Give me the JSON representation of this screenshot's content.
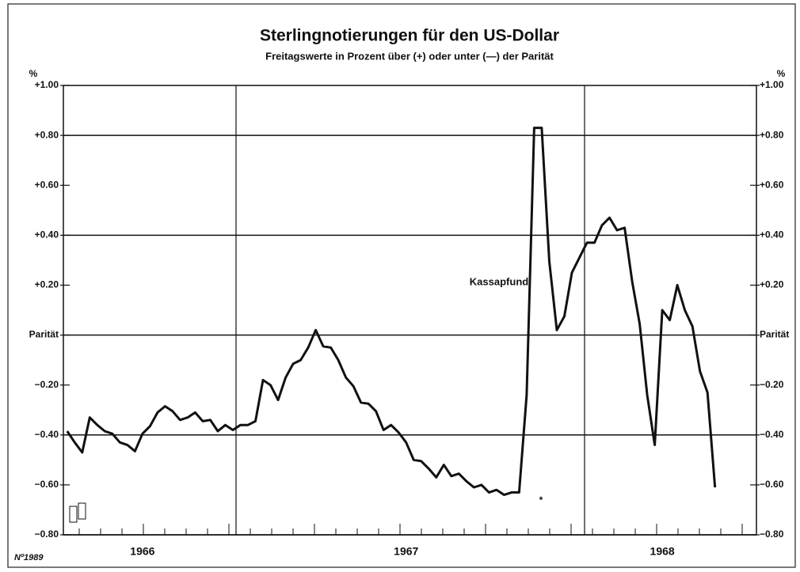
{
  "chart_data": {
    "type": "line",
    "title": "Sterlingnotierungen für den US-Dollar",
    "subtitle": "Freitagswerte in Prozent über (+) oder unter (—) der Parität",
    "y_unit": "%",
    "annotations": {
      "series_label": "Kassapfund",
      "marker": "*",
      "number": "Nº1989"
    },
    "color": "#111111",
    "grid": true,
    "ylim": [
      -0.8,
      1.0
    ],
    "yticks": [
      {
        "value": 1.0,
        "label": "+1.00"
      },
      {
        "value": 0.8,
        "label": "+0.80"
      },
      {
        "value": 0.6,
        "label": "+0.60"
      },
      {
        "value": 0.4,
        "label": "+0.40"
      },
      {
        "value": 0.2,
        "label": "+0.20"
      },
      {
        "value": 0,
        "label": "Parität"
      },
      {
        "value": -0.2,
        "label": "−0.20"
      },
      {
        "value": -0.4,
        "label": "−0.40"
      },
      {
        "value": -0.6,
        "label": "−0.60"
      },
      {
        "value": -0.8,
        "label": "−0.80"
      }
    ],
    "categories": [
      null,
      null,
      null,
      null,
      null,
      null,
      null,
      null,
      null,
      null,
      "1966",
      null,
      null,
      null,
      null,
      null,
      null,
      null,
      null,
      null,
      null,
      null,
      null,
      null,
      null,
      null,
      null,
      null,
      null,
      null,
      null,
      null,
      null,
      null,
      null,
      null,
      null,
      null,
      null,
      null,
      null,
      null,
      null,
      null,
      null,
      "1967",
      null,
      null,
      null,
      null,
      null,
      null,
      null,
      null,
      null,
      null,
      null,
      null,
      null,
      null,
      null,
      null,
      null,
      null,
      null,
      null,
      null,
      null,
      null,
      null,
      null,
      null,
      null,
      null,
      null,
      null,
      null,
      null,
      null,
      "1968",
      null,
      null,
      null,
      null,
      null,
      null,
      null,
      null,
      null,
      null,
      null,
      null
    ],
    "values": [
      -0.385,
      -0.43,
      -0.47,
      -0.33,
      -0.36,
      -0.385,
      -0.395,
      -0.43,
      -0.44,
      -0.465,
      -0.395,
      -0.365,
      -0.31,
      -0.285,
      -0.305,
      -0.34,
      -0.33,
      -0.31,
      -0.345,
      -0.34,
      -0.385,
      -0.36,
      -0.38,
      -0.36,
      -0.36,
      -0.345,
      -0.18,
      -0.2,
      -0.26,
      -0.17,
      -0.115,
      -0.1,
      -0.05,
      0.02,
      -0.045,
      -0.05,
      -0.1,
      -0.17,
      -0.205,
      -0.27,
      -0.275,
      -0.305,
      -0.38,
      -0.36,
      -0.39,
      -0.43,
      -0.5,
      -0.505,
      -0.535,
      -0.57,
      -0.52,
      -0.565,
      -0.555,
      -0.585,
      -0.61,
      -0.6,
      -0.63,
      -0.62,
      -0.64,
      -0.63,
      -0.63,
      -0.24,
      0.83,
      0.83,
      0.295,
      0.02,
      0.075,
      0.25,
      0.31,
      0.37,
      0.37,
      0.44,
      0.47,
      0.42,
      0.43,
      0.215,
      0.045,
      -0.24,
      -0.44,
      0.1,
      0.06,
      0.2,
      0.1,
      0.035,
      -0.145,
      -0.23,
      -0.61,
      null,
      null,
      null,
      null,
      null
    ]
  }
}
